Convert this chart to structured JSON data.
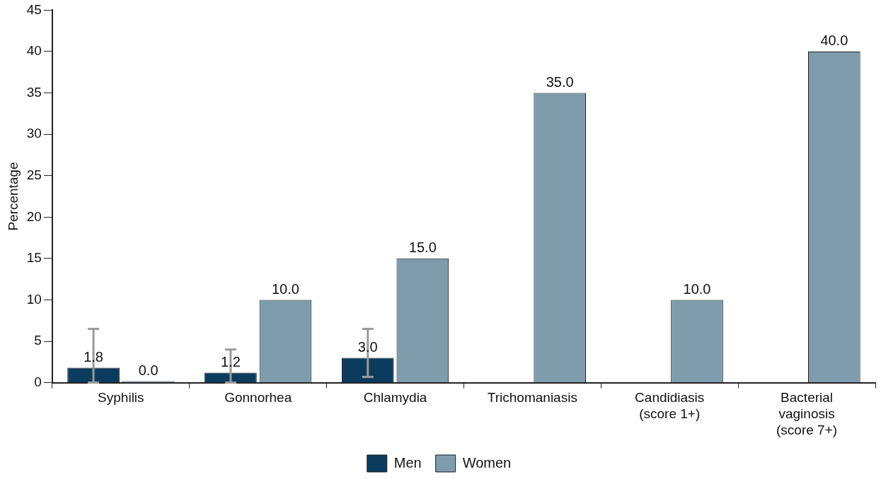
{
  "chart_data": {
    "type": "bar",
    "ylabel": "Percentage",
    "categories": [
      "Syphilis",
      "Gonnorhea",
      "Chlamydia",
      "Trichomaniasis",
      "Candidiasis (score 1+)",
      "Bacterial vaginosis (score 7+)"
    ],
    "series": [
      {
        "name": "Men",
        "color": "#0b3c5d",
        "values": [
          1.8,
          1.2,
          3.0,
          null,
          null,
          null
        ],
        "value_labels": [
          "1.8",
          "1.2",
          "3.0",
          null,
          null,
          null
        ],
        "errors": [
          [
            0,
            6.5
          ],
          [
            0,
            4.0
          ],
          [
            0.7,
            6.5
          ],
          null,
          null,
          null
        ]
      },
      {
        "name": "Women",
        "color": "#7f9cad",
        "values": [
          0,
          10,
          15,
          35,
          10,
          40
        ],
        "value_labels": [
          "0.0",
          "10.0",
          "15.0",
          "35.0",
          "10.0",
          "40.0"
        ]
      }
    ],
    "ylim": [
      0,
      45
    ],
    "yticks": [
      0,
      5,
      10,
      15,
      20,
      25,
      30,
      35,
      40,
      45
    ],
    "grid": false,
    "legend": "bottom"
  }
}
